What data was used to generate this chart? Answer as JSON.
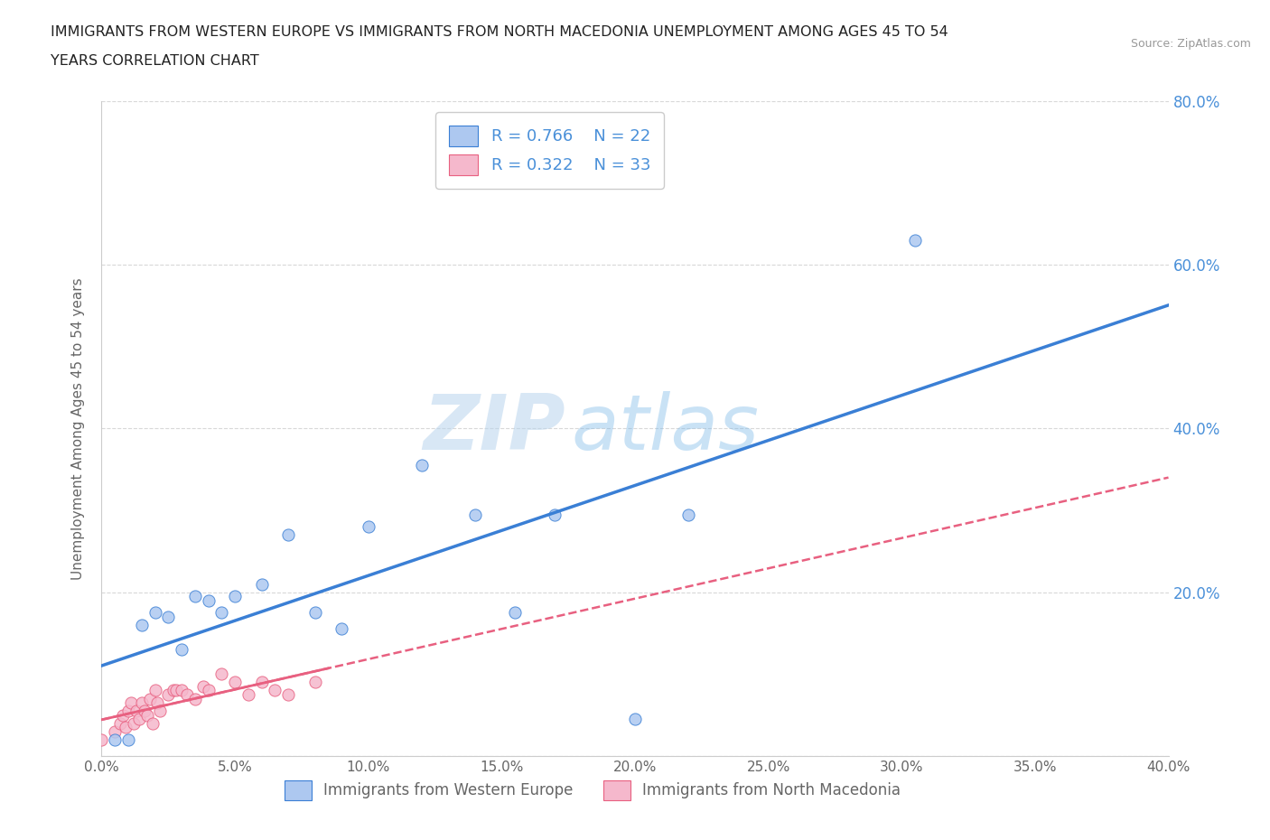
{
  "title_line1": "IMMIGRANTS FROM WESTERN EUROPE VS IMMIGRANTS FROM NORTH MACEDONIA UNEMPLOYMENT AMONG AGES 45 TO 54",
  "title_line2": "YEARS CORRELATION CHART",
  "source": "Source: ZipAtlas.com",
  "ylabel": "Unemployment Among Ages 45 to 54 years",
  "xlim": [
    0.0,
    0.4
  ],
  "ylim": [
    0.0,
    0.8
  ],
  "xticks": [
    0.0,
    0.05,
    0.1,
    0.15,
    0.2,
    0.25,
    0.3,
    0.35,
    0.4
  ],
  "yticks_right": [
    0.2,
    0.4,
    0.6,
    0.8
  ],
  "yticks_left": [
    0.0,
    0.2,
    0.4,
    0.6,
    0.8
  ],
  "blue_scatter_x": [
    0.005,
    0.01,
    0.015,
    0.02,
    0.025,
    0.03,
    0.035,
    0.04,
    0.045,
    0.05,
    0.06,
    0.07,
    0.08,
    0.09,
    0.1,
    0.12,
    0.14,
    0.155,
    0.17,
    0.2,
    0.22,
    0.305
  ],
  "blue_scatter_y": [
    0.02,
    0.02,
    0.16,
    0.175,
    0.17,
    0.13,
    0.195,
    0.19,
    0.175,
    0.195,
    0.21,
    0.27,
    0.175,
    0.155,
    0.28,
    0.355,
    0.295,
    0.175,
    0.295,
    0.045,
    0.295,
    0.63
  ],
  "pink_scatter_x": [
    0.0,
    0.005,
    0.007,
    0.008,
    0.009,
    0.01,
    0.011,
    0.012,
    0.013,
    0.014,
    0.015,
    0.016,
    0.017,
    0.018,
    0.019,
    0.02,
    0.021,
    0.022,
    0.025,
    0.027,
    0.028,
    0.03,
    0.032,
    0.035,
    0.038,
    0.04,
    0.045,
    0.05,
    0.055,
    0.06,
    0.065,
    0.07,
    0.08
  ],
  "pink_scatter_y": [
    0.02,
    0.03,
    0.04,
    0.05,
    0.035,
    0.055,
    0.065,
    0.04,
    0.055,
    0.045,
    0.065,
    0.055,
    0.05,
    0.07,
    0.04,
    0.08,
    0.065,
    0.055,
    0.075,
    0.08,
    0.08,
    0.08,
    0.075,
    0.07,
    0.085,
    0.08,
    0.1,
    0.09,
    0.075,
    0.09,
    0.08,
    0.075,
    0.09
  ],
  "blue_R": 0.766,
  "blue_N": 22,
  "pink_R": 0.322,
  "pink_N": 33,
  "blue_color": "#adc8f0",
  "pink_color": "#f5b8cc",
  "blue_line_color": "#3a7fd5",
  "pink_line_color": "#e86080",
  "pink_dashed_color": "#e86080",
  "watermark_zip": "ZIP",
  "watermark_atlas": "atlas",
  "background_color": "#ffffff",
  "grid_color": "#d8d8d8",
  "right_tick_color": "#4a90d9",
  "legend_label_color": "#4a90d9",
  "bottom_label_color": "#666666"
}
